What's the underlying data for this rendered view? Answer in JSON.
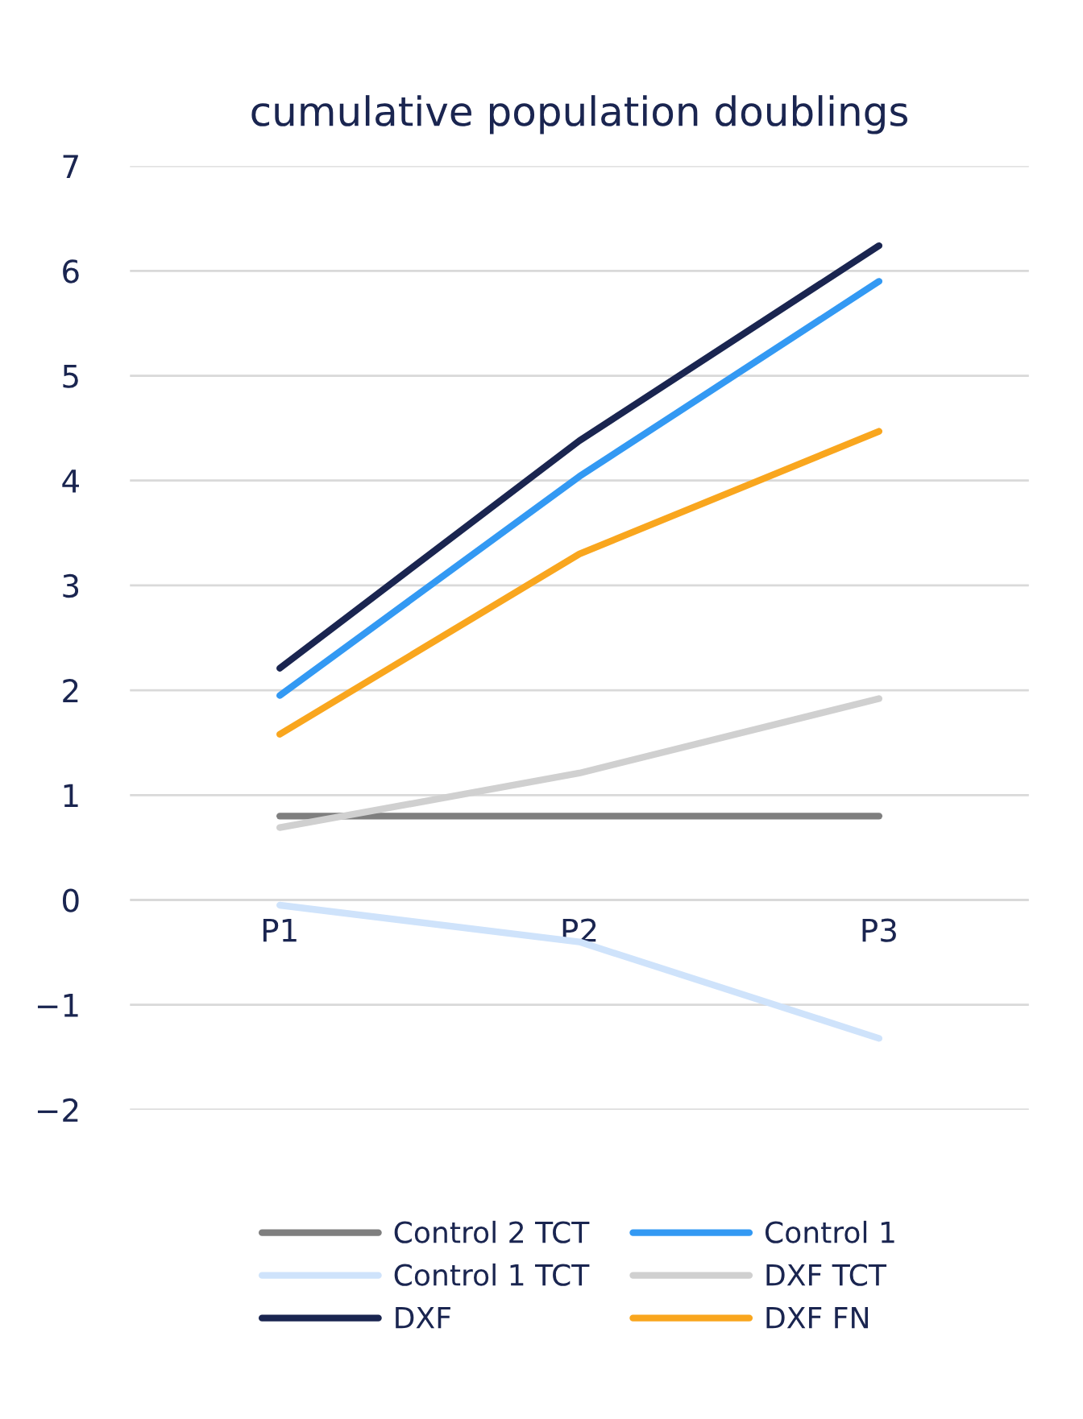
{
  "chart_data": {
    "type": "line",
    "title": "cumulative population doublings",
    "categories": [
      "P1",
      "P2",
      "P3"
    ],
    "series": [
      {
        "name": "Control 2 TCT",
        "color": "#7f7f7f",
        "values": [
          0.8,
          0.8,
          0.8
        ]
      },
      {
        "name": "Control 1",
        "color": "#3399f3",
        "values": [
          1.95,
          4.04,
          5.9
        ]
      },
      {
        "name": "Control 1 TCT",
        "color": "#cfe3fb",
        "values": [
          -0.05,
          -0.4,
          -1.32
        ]
      },
      {
        "name": "DXF TCT",
        "color": "#d0d0d0",
        "values": [
          0.69,
          1.21,
          1.92
        ]
      },
      {
        "name": "DXF",
        "color": "#1a2550",
        "values": [
          2.21,
          4.38,
          6.24
        ]
      },
      {
        "name": "DXF FN",
        "color": "#f9a61e",
        "values": [
          1.58,
          3.3,
          4.47
        ]
      }
    ],
    "ylim": [
      -2,
      7
    ],
    "yticks": [
      -2,
      -1,
      0,
      1,
      2,
      3,
      4,
      5,
      6,
      7
    ],
    "grid": "y",
    "legend": "bottom",
    "marker": "none",
    "line_style": "solid"
  }
}
